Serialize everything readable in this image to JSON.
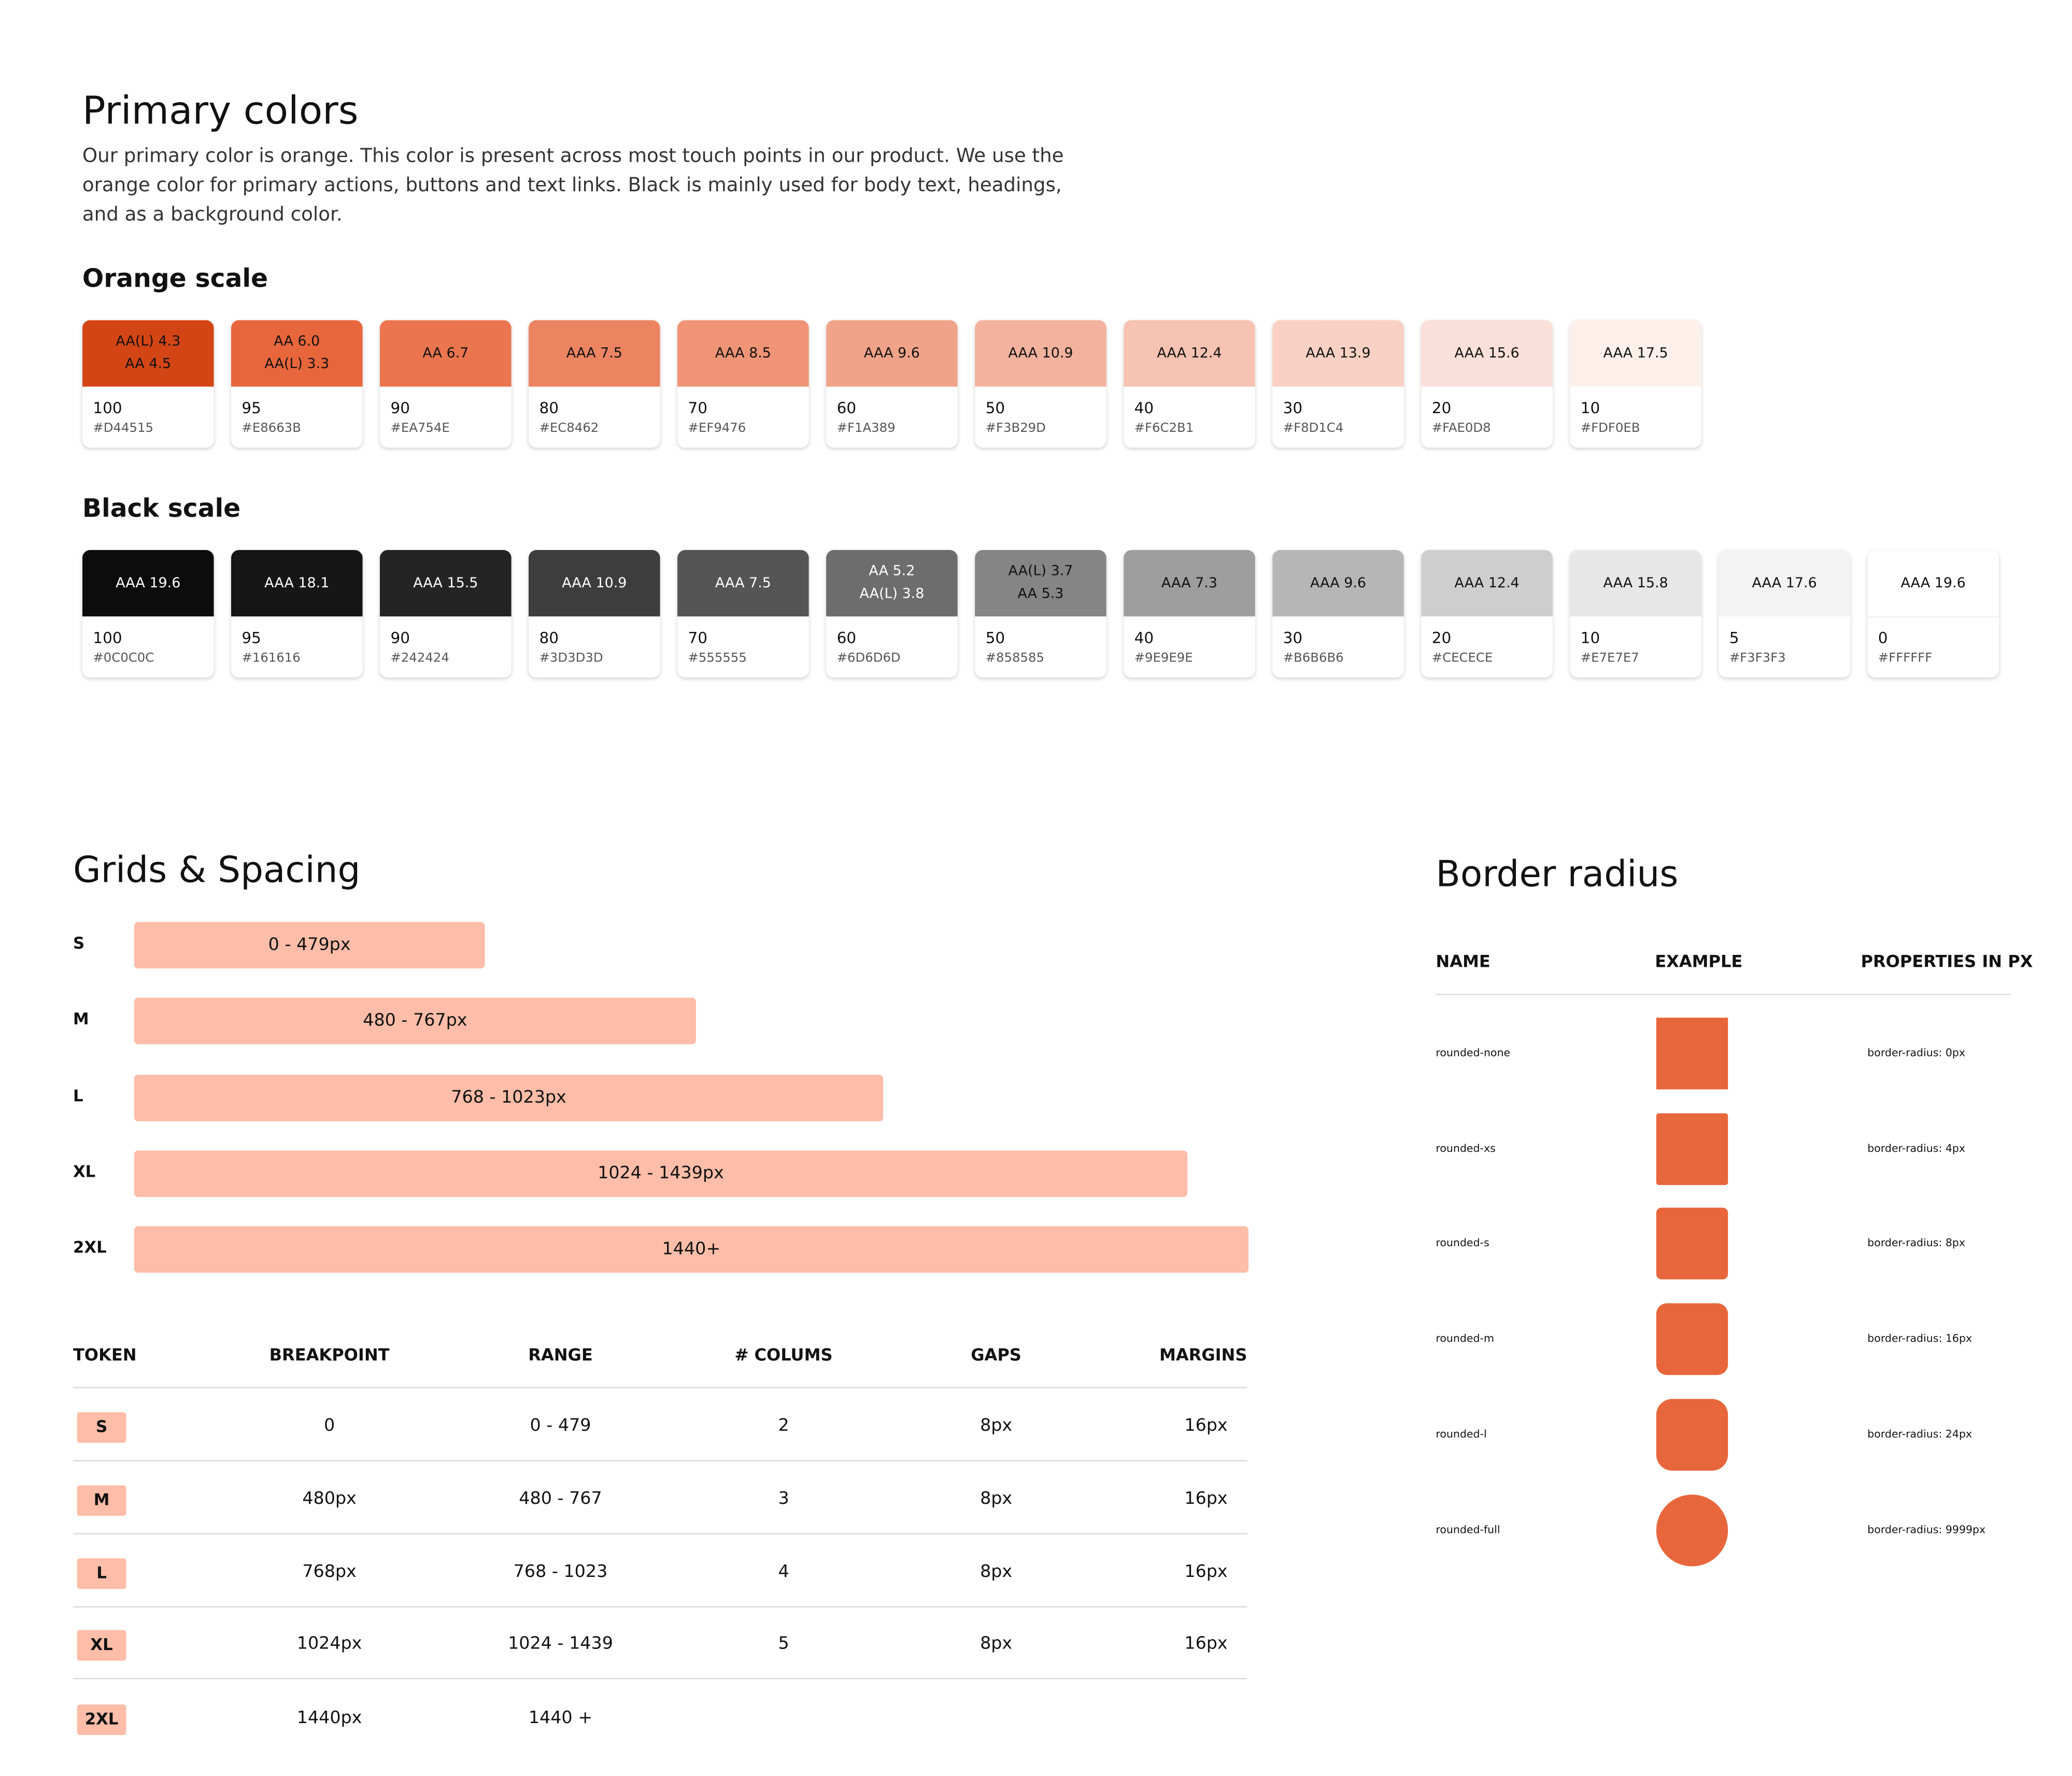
{
  "primary": {
    "title": "Primary colors",
    "description": "Our primary color is orange. This color is present across most touch points in our product. We use the orange color for primary actions, buttons and text links. Black is mainly used for body text, headings, and as a background color."
  },
  "scales": [
    {
      "title": "Orange scale",
      "swatches": [
        {
          "labels": [
            "AA(L) 4.3",
            "AA 4.5"
          ],
          "step": "100",
          "hex": "#D44515"
        },
        {
          "labels": [
            "AA 6.0",
            "AA(L) 3.3"
          ],
          "step": "95",
          "hex": "#E8663B"
        },
        {
          "labels": [
            "AA 6.7"
          ],
          "step": "90",
          "hex": "#EA754E"
        },
        {
          "labels": [
            "AAA 7.5"
          ],
          "step": "80",
          "hex": "#EC8462"
        },
        {
          "labels": [
            "AAA 8.5"
          ],
          "step": "70",
          "hex": "#EF9476"
        },
        {
          "labels": [
            "AAA 9.6"
          ],
          "step": "60",
          "hex": "#F1A389"
        },
        {
          "labels": [
            "AAA 10.9"
          ],
          "step": "50",
          "hex": "#F3B29D"
        },
        {
          "labels": [
            "AAA 12.4"
          ],
          "step": "40",
          "hex": "#F6C2B1"
        },
        {
          "labels": [
            "AAA 13.9"
          ],
          "step": "30",
          "hex": "#F8D1C4"
        },
        {
          "labels": [
            "AAA 15.6"
          ],
          "step": "20",
          "hex": "#FAE0D8"
        },
        {
          "labels": [
            "AAA 17.5"
          ],
          "step": "10",
          "hex": "#FDF0EB"
        }
      ]
    },
    {
      "title": "Black scale",
      "swatches": [
        {
          "labels": [
            "AAA 19.6"
          ],
          "step": "100",
          "hex": "#0C0C0C"
        },
        {
          "labels": [
            "AAA 18.1"
          ],
          "step": "95",
          "hex": "#161616"
        },
        {
          "labels": [
            "AAA 15.5"
          ],
          "step": "90",
          "hex": "#242424"
        },
        {
          "labels": [
            "AAA 10.9"
          ],
          "step": "80",
          "hex": "#3D3D3D"
        },
        {
          "labels": [
            "AAA 7.5"
          ],
          "step": "70",
          "hex": "#555555"
        },
        {
          "labels": [
            "AA 5.2",
            "AA(L) 3.8"
          ],
          "step": "60",
          "hex": "#6D6D6D"
        },
        {
          "labels": [
            "AA(L) 3.7",
            "AA 5.3"
          ],
          "step": "50",
          "hex": "#858585"
        },
        {
          "labels": [
            "AAA 7.3"
          ],
          "step": "40",
          "hex": "#9E9E9E"
        },
        {
          "labels": [
            "AAA 9.6"
          ],
          "step": "30",
          "hex": "#B6B6B6"
        },
        {
          "labels": [
            "AAA 12.4"
          ],
          "step": "20",
          "hex": "#CECECE"
        },
        {
          "labels": [
            "AAA 15.8"
          ],
          "step": "10",
          "hex": "#E7E7E7"
        },
        {
          "labels": [
            "AAA 17.6"
          ],
          "step": "5",
          "hex": "#F3F3F3"
        },
        {
          "labels": [
            "AAA 19.6"
          ],
          "step": "0",
          "hex": "#FFFFFF"
        }
      ]
    }
  ],
  "grids": {
    "title": "Grids & Spacing",
    "bars": [
      {
        "token": "S",
        "range": "0 - 479px"
      },
      {
        "token": "M",
        "range": "480 - 767px"
      },
      {
        "token": "L",
        "range": "768 - 1023px"
      },
      {
        "token": "XL",
        "range": "1024 - 1439px"
      },
      {
        "token": "2XL",
        "range": "1440+"
      }
    ],
    "table": {
      "headers": [
        "TOKEN",
        "BREAKPOINT",
        "RANGE",
        "# COLUMS",
        "GAPS",
        "MARGINS"
      ],
      "rows": [
        [
          "S",
          "0",
          "0 - 479",
          "2",
          "8px",
          "16px"
        ],
        [
          "M",
          "480px",
          "480 - 767",
          "3",
          "8px",
          "16px"
        ],
        [
          "L",
          "768px",
          "768 - 1023",
          "4",
          "8px",
          "16px"
        ],
        [
          "XL",
          "1024px",
          "1024 - 1439",
          "5",
          "8px",
          "16px"
        ],
        [
          "2XL",
          "1440px",
          "1440 +"
        ]
      ]
    }
  },
  "radius": {
    "title": "Border radius",
    "headers": [
      "NAME",
      "EXAMPLE",
      "PROPERTIES IN PX"
    ],
    "rows": [
      {
        "name": "rounded-none",
        "property": "border-radius: 0px"
      },
      {
        "name": "rounded-xs",
        "property": "border-radius: 4px"
      },
      {
        "name": "rounded-s",
        "property": "border-radius: 8px"
      },
      {
        "name": "rounded-m",
        "property": "border-radius: 16px"
      },
      {
        "name": "rounded-l",
        "property": "border-radius: 24px"
      },
      {
        "name": "rounded-full",
        "property": "border-radius: 9999px"
      }
    ]
  }
}
